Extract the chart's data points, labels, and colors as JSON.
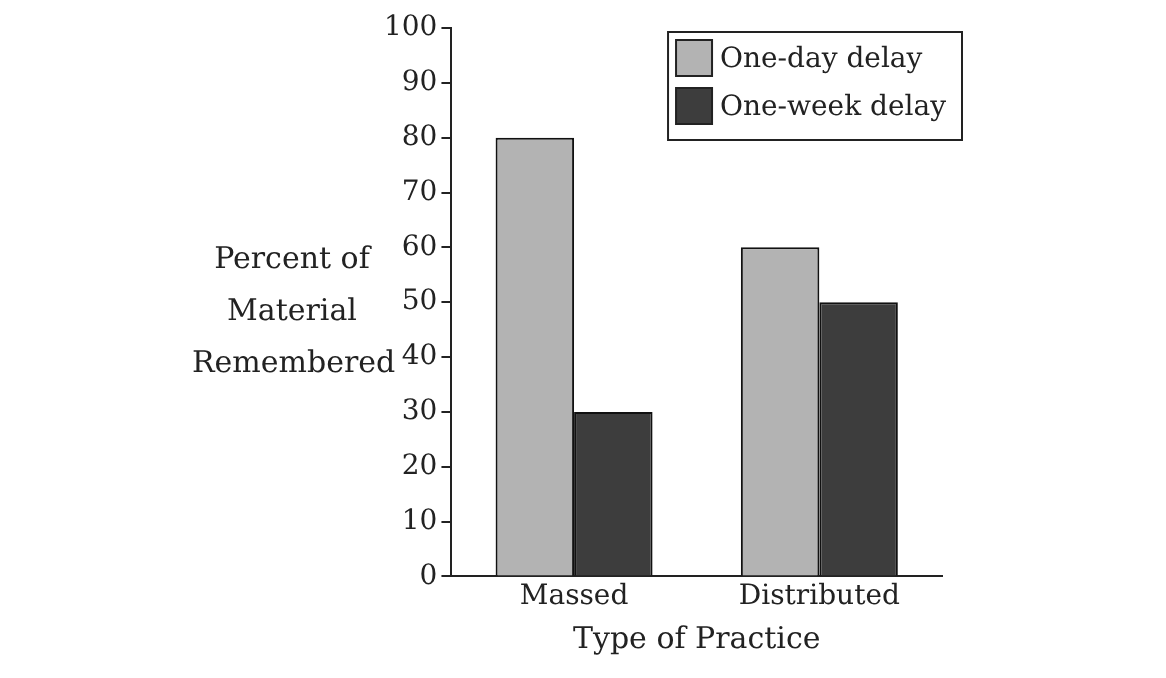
{
  "chart_data": {
    "type": "bar",
    "xlabel": "Type of Practice",
    "ylabel": "Percent of Material Remembered",
    "categories": [
      "Massed",
      "Distributed"
    ],
    "series": [
      {
        "name": "One-day delay",
        "color": "#b3b3b3",
        "values": [
          80,
          60
        ]
      },
      {
        "name": "One-week delay",
        "color": "#3d3d3d",
        "values": [
          30,
          50
        ]
      }
    ],
    "ylim": [
      0,
      100
    ],
    "yticks": [
      0,
      10,
      20,
      30,
      40,
      50,
      60,
      70,
      80,
      90,
      100
    ],
    "grid": false,
    "legend": "top right"
  }
}
